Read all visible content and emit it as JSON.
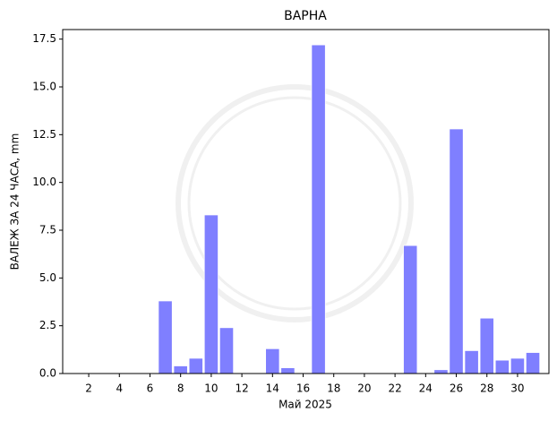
{
  "chart_data": {
    "type": "bar",
    "title": "ВАРНА",
    "xlabel": "Май  2025",
    "ylabel": "ВАЛЕЖ ЗА 24 ЧАСА,  mm",
    "x": [
      1,
      2,
      3,
      4,
      5,
      6,
      7,
      8,
      9,
      10,
      11,
      12,
      13,
      14,
      15,
      16,
      17,
      18,
      19,
      20,
      21,
      22,
      23,
      24,
      25,
      26,
      27,
      28,
      29,
      30,
      31
    ],
    "values": [
      0,
      0,
      0,
      0,
      0,
      0,
      3.8,
      0.4,
      0.8,
      8.3,
      2.4,
      0,
      0,
      1.3,
      0.3,
      0,
      17.2,
      0,
      0,
      0,
      0,
      0,
      6.7,
      0,
      0.2,
      12.8,
      1.2,
      2.9,
      0.7,
      0.8,
      1.1
    ],
    "color": "#7f7fff",
    "xlim": [
      0.3,
      32.05
    ],
    "xticks": [
      2,
      4,
      6,
      8,
      10,
      12,
      14,
      16,
      18,
      20,
      22,
      24,
      26,
      28,
      30
    ],
    "ylim": [
      0,
      18
    ],
    "yticks": [
      {
        "value": 0,
        "label": "0.0"
      },
      2.5,
      {
        "value": 5,
        "label": "5.0"
      },
      7.5,
      {
        "value": 10,
        "label": "10.0"
      },
      12.5,
      {
        "value": 15,
        "label": "15.0"
      },
      17.5
    ]
  }
}
